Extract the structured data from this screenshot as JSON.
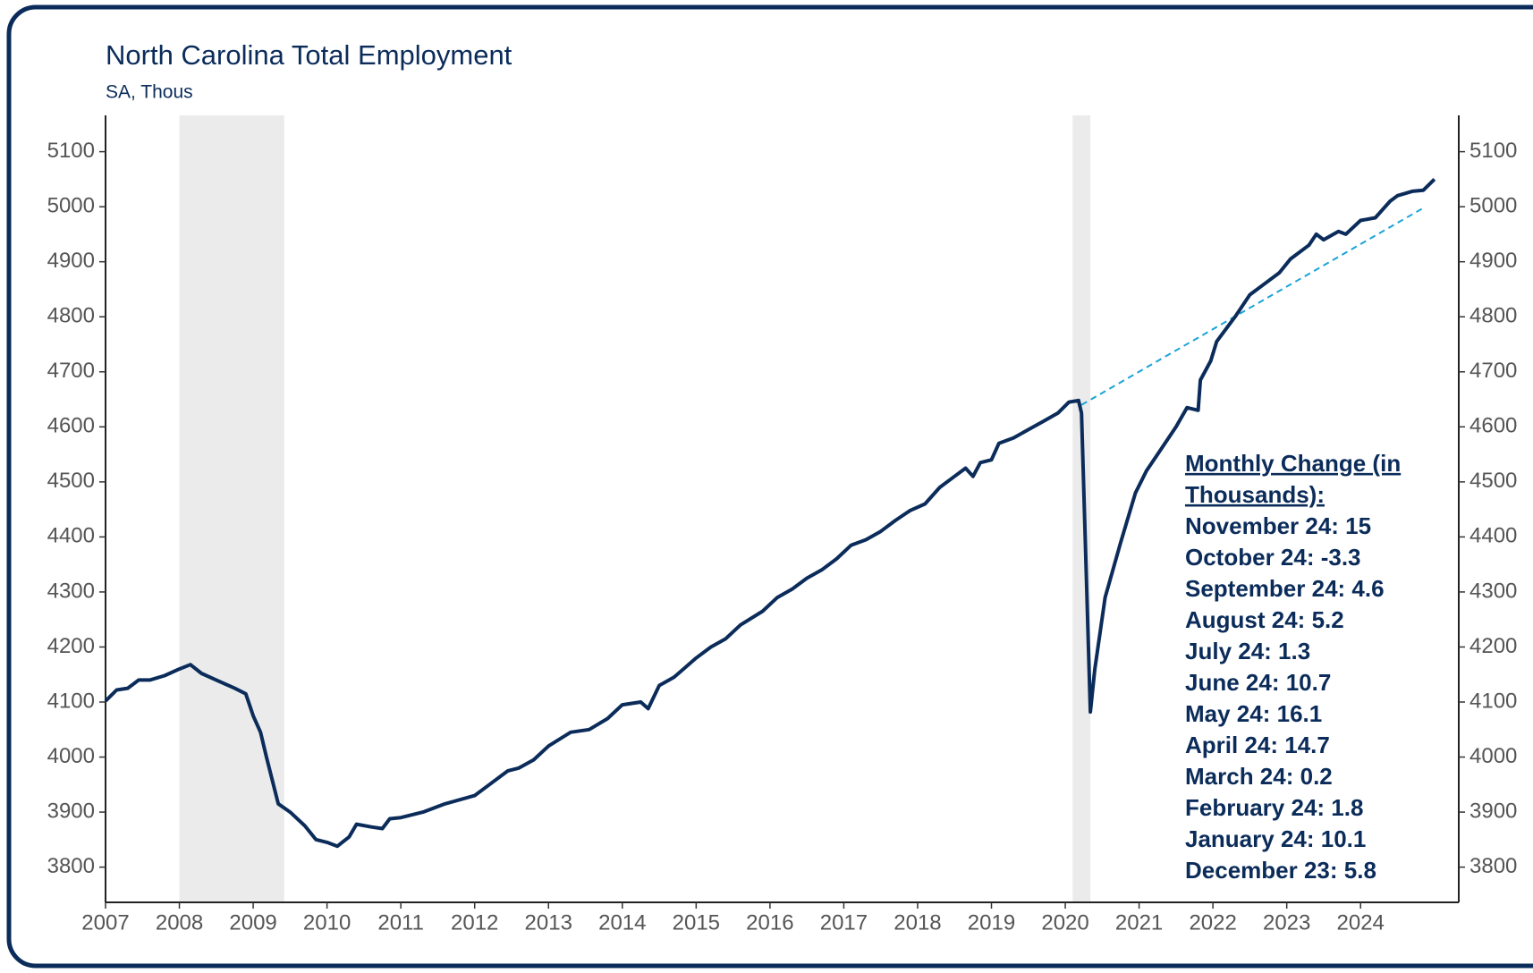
{
  "chart_data": {
    "type": "line",
    "title": "North Carolina Total Employment",
    "subtitle": "SA, Thous",
    "x": [
      2007.0,
      2007.15,
      2007.3,
      2007.45,
      2007.6,
      2007.8,
      2008.0,
      2008.15,
      2008.3,
      2008.5,
      2008.75,
      2008.9,
      2009.0,
      2009.1,
      2009.18,
      2009.34,
      2009.5,
      2009.7,
      2009.85,
      2010.0,
      2010.14,
      2010.3,
      2010.4,
      2010.6,
      2010.75,
      2010.85,
      2011.0,
      2011.3,
      2011.6,
      2012.0,
      2012.2,
      2012.45,
      2012.6,
      2012.8,
      2013.0,
      2013.3,
      2013.55,
      2013.8,
      2014.0,
      2014.25,
      2014.35,
      2014.5,
      2014.7,
      2015.0,
      2015.2,
      2015.4,
      2015.6,
      2015.9,
      2016.1,
      2016.3,
      2016.5,
      2016.7,
      2016.9,
      2017.1,
      2017.3,
      2017.5,
      2017.7,
      2017.9,
      2018.1,
      2018.3,
      2018.5,
      2018.65,
      2018.75,
      2018.85,
      2019.0,
      2019.1,
      2019.3,
      2019.5,
      2019.7,
      2019.9,
      2020.05,
      2020.18,
      2020.22,
      2020.34,
      2020.4,
      2020.54,
      2020.75,
      2020.95,
      2021.1,
      2021.25,
      2021.5,
      2021.65,
      2021.8,
      2021.83,
      2021.97,
      2022.05,
      2022.3,
      2022.5,
      2022.7,
      2022.9,
      2023.05,
      2023.3,
      2023.4,
      2023.5,
      2023.7,
      2023.8,
      2024.0,
      2024.2,
      2024.4,
      2024.5,
      2024.7,
      2024.85,
      2025.0
    ],
    "series": [
      {
        "name": "Total Employment",
        "color": "#0b2c5a",
        "values": [
          4102,
          4122,
          4125,
          4140,
          4140,
          4148,
          4160,
          4168,
          4152,
          4140,
          4125,
          4115,
          4075,
          4045,
          4000,
          3915,
          3900,
          3875,
          3850,
          3845,
          3838,
          3855,
          3878,
          3873,
          3870,
          3888,
          3890,
          3900,
          3915,
          3930,
          3950,
          3975,
          3980,
          3995,
          4020,
          4045,
          4050,
          4070,
          4095,
          4100,
          4088,
          4130,
          4145,
          4180,
          4200,
          4215,
          4240,
          4265,
          4290,
          4305,
          4325,
          4340,
          4360,
          4385,
          4395,
          4410,
          4430,
          4448,
          4460,
          4490,
          4510,
          4525,
          4510,
          4535,
          4540,
          4570,
          4580,
          4595,
          4610,
          4625,
          4645,
          4648,
          4625,
          4082,
          4160,
          4290,
          4390,
          4480,
          4520,
          4550,
          4600,
          4635,
          4630,
          4685,
          4720,
          4755,
          4800,
          4840,
          4860,
          4880,
          4905,
          4930,
          4950,
          4940,
          4955,
          4950,
          4975,
          4980,
          5010,
          5020,
          5028,
          5030,
          5050
        ]
      }
    ],
    "trend": {
      "color": "#1aa3d9",
      "x": [
        2020.22,
        2024.84
      ],
      "values": [
        4640,
        4997
      ]
    },
    "recessions": [
      [
        2008.0,
        2009.42
      ],
      [
        2020.1,
        2020.34
      ]
    ],
    "xlim": [
      2007,
      2025.33
    ],
    "ylim": [
      3736,
      5166
    ],
    "xticks": [
      2007,
      2008,
      2009,
      2010,
      2011,
      2012,
      2013,
      2014,
      2015,
      2016,
      2017,
      2018,
      2019,
      2020,
      2021,
      2022,
      2023,
      2024
    ],
    "yticks": [
      3800,
      3900,
      4000,
      4100,
      4200,
      4300,
      4400,
      4500,
      4600,
      4700,
      4800,
      4900,
      5000,
      5100
    ],
    "annotation_heading": [
      "Monthly Change (in",
      "Thousands):"
    ],
    "annotation": [
      "November 24: 15",
      "October 24: -3.3",
      "September 24: 4.6",
      "August 24: 5.2",
      "July 24: 1.3",
      "June 24: 10.7",
      "May 24: 16.1",
      "April 24: 14.7",
      "March 24: 0.2",
      "February 24: 1.8",
      "January 24: 10.1",
      "December 23: 5.8"
    ]
  }
}
